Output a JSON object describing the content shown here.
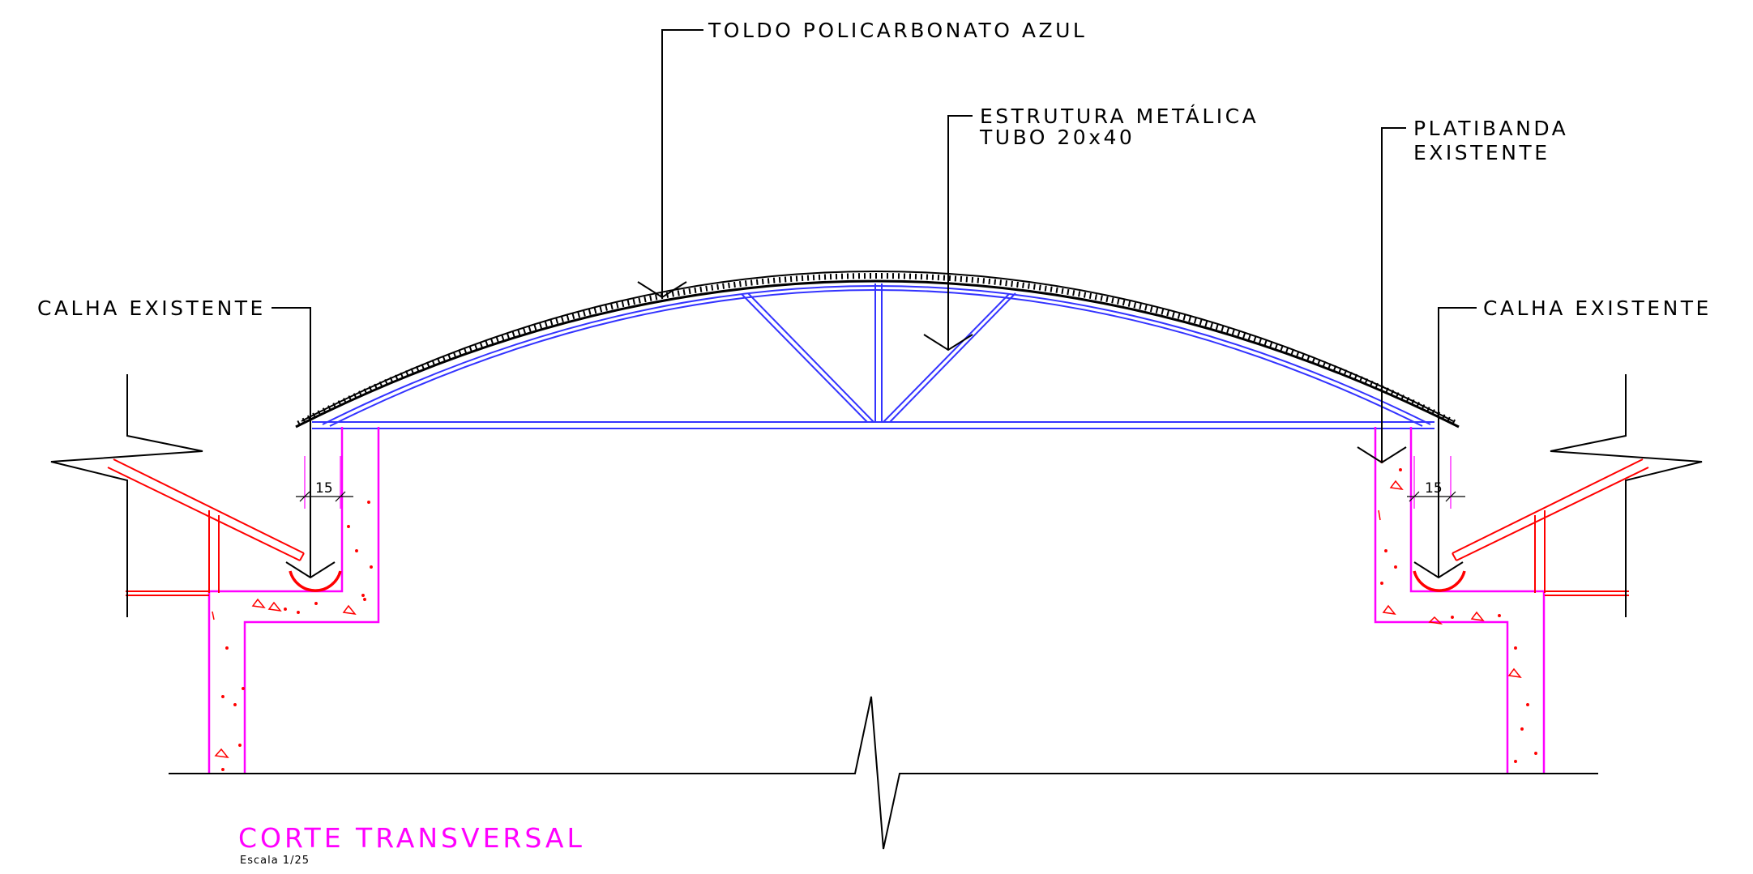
{
  "labels": {
    "toldo": "TOLDO POLICARBONATO AZUL",
    "estrutura_line1": "ESTRUTURA METÁLICA",
    "estrutura_line2": "TUBO 20x40",
    "platibanda_line1": "PLATIBANDA",
    "platibanda_line2": "EXISTENTE",
    "calha_left": "CALHA EXISTENTE",
    "calha_right": "CALHA EXISTENTE"
  },
  "dimensions": {
    "left": "15",
    "right": "15"
  },
  "title": {
    "main": "CORTE TRANSVERSAL",
    "scale": "Escala 1/25"
  },
  "colors": {
    "lines": "#000000",
    "structure": "#3333ff",
    "concrete": "#ff00ff",
    "gutter": "#ff0000",
    "title": "#ff00ff"
  }
}
